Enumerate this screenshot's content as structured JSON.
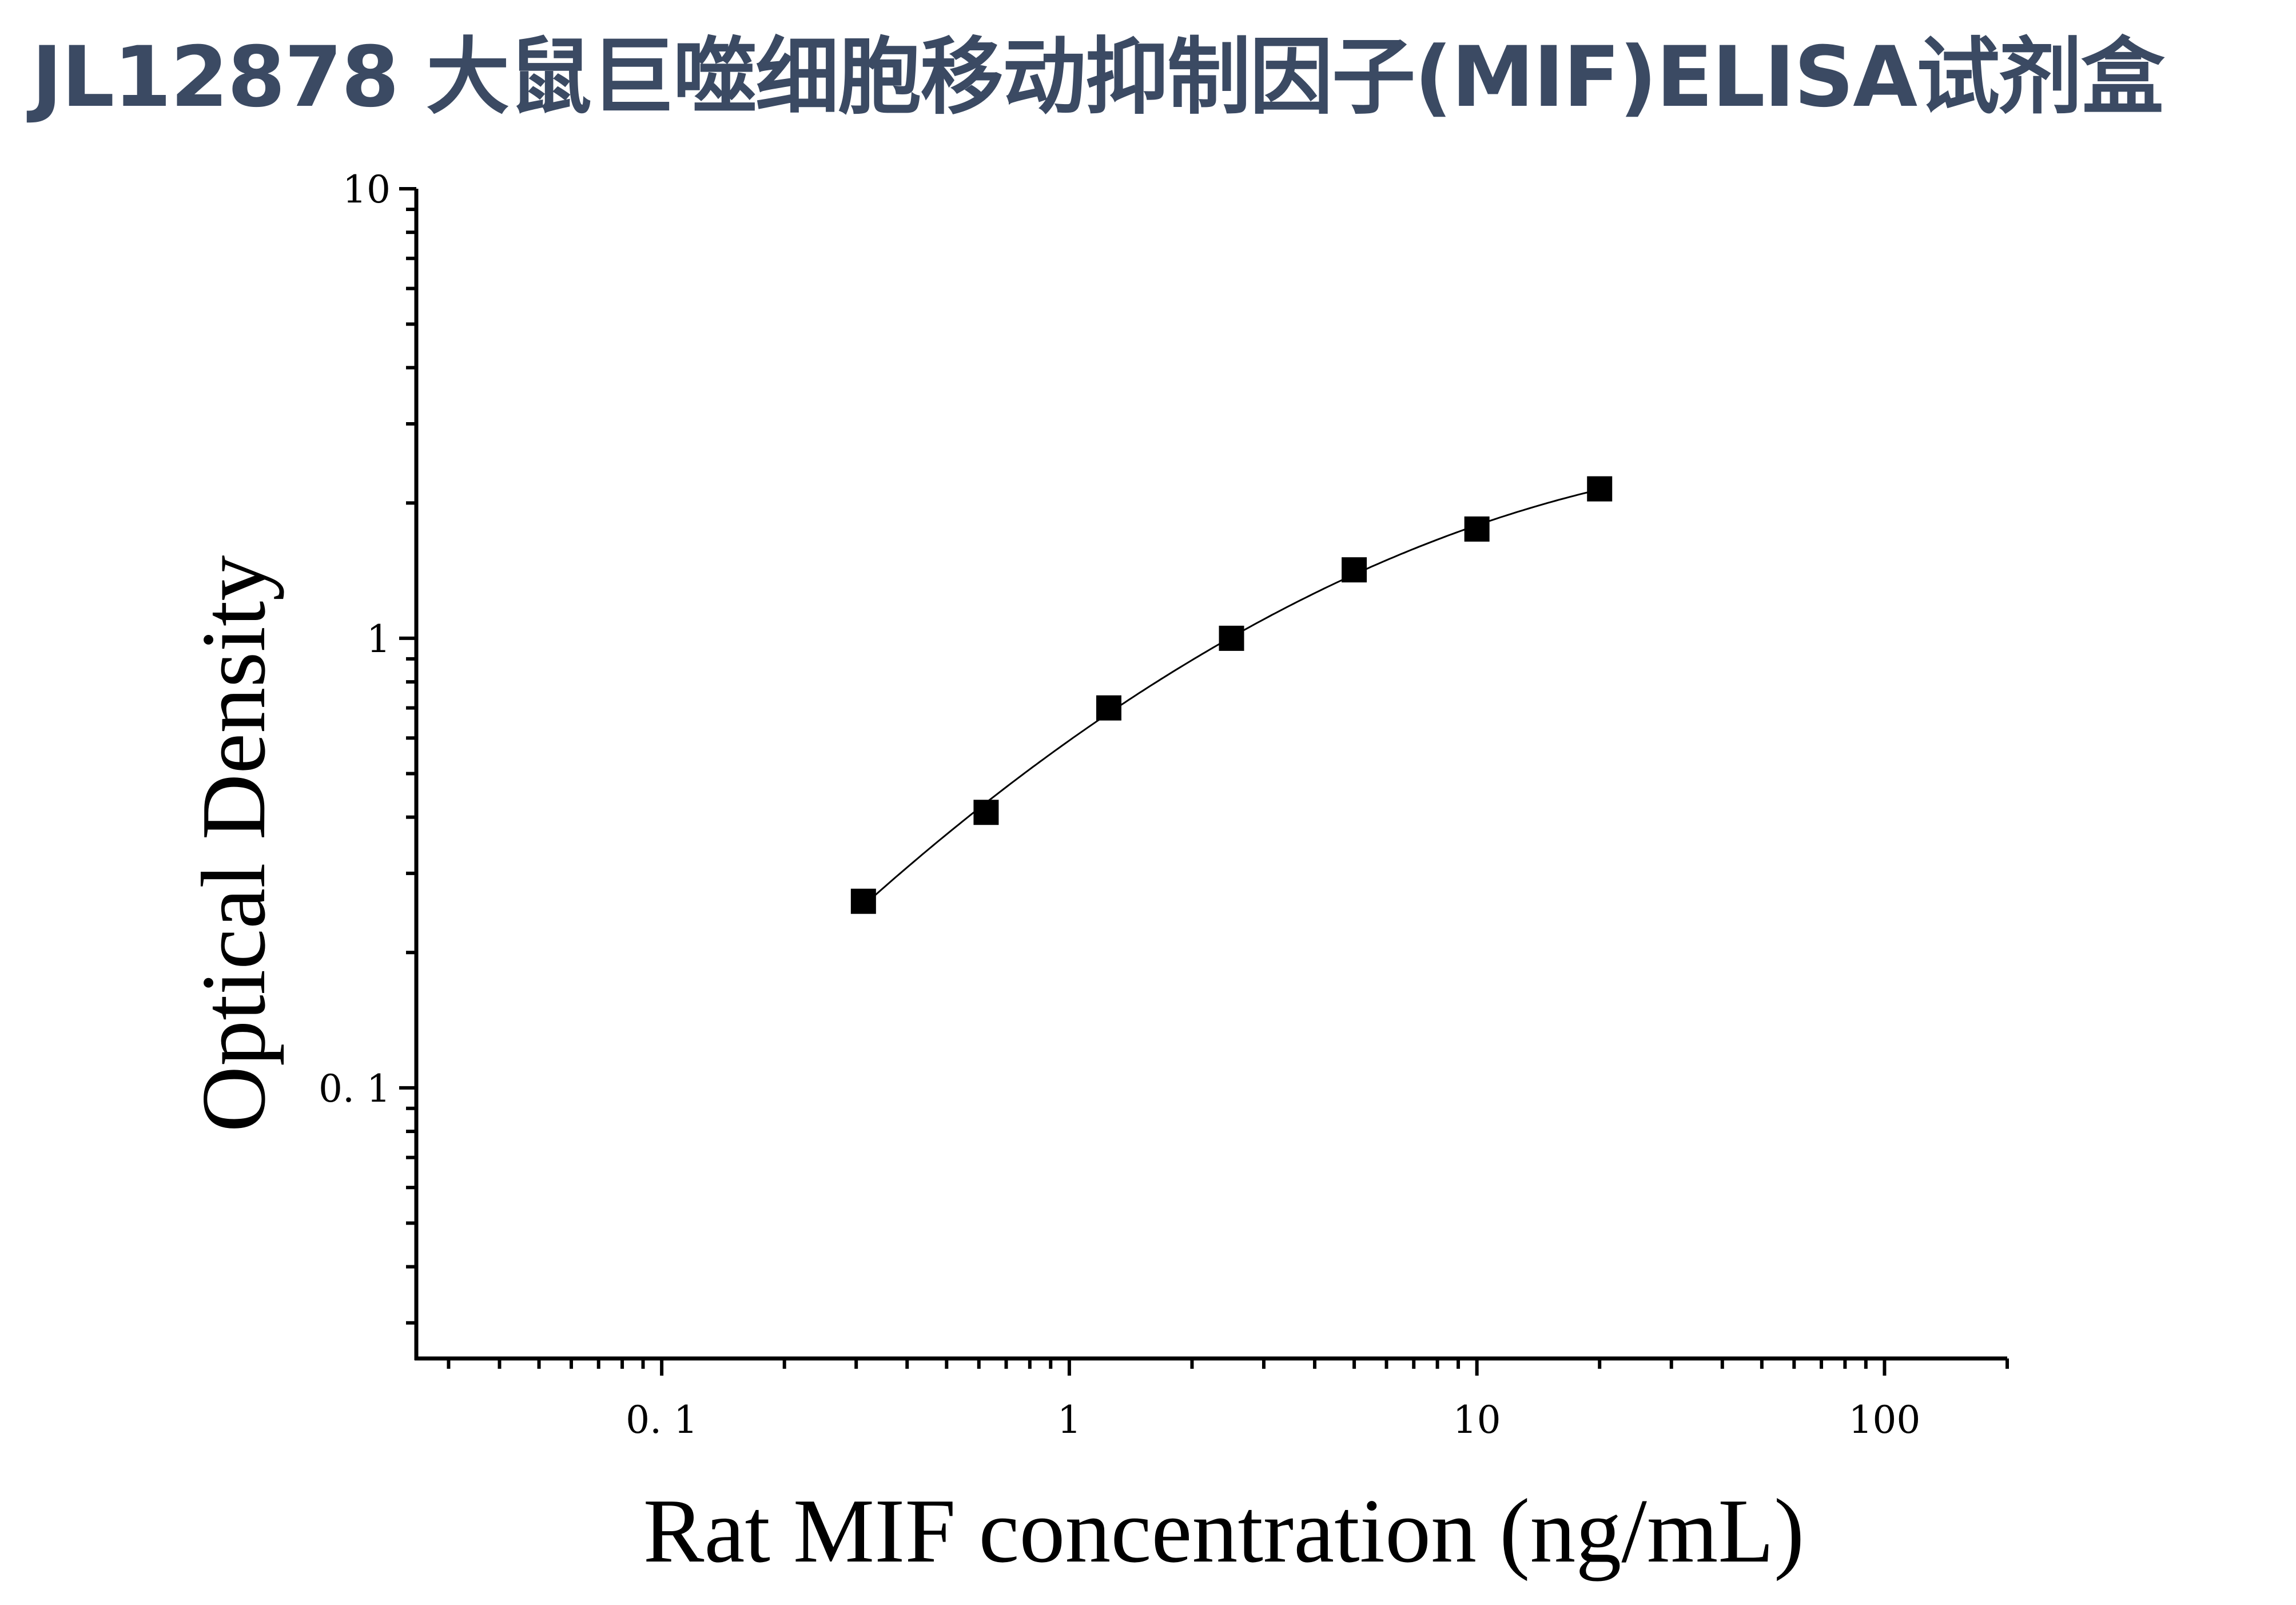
{
  "title": "JL12878 大鼠巨噬细胞移动抑制因子(MIF)ELISA试剂盒",
  "chart_data": {
    "type": "scatter",
    "xlabel": "Rat MIF concentration (ng/mL)",
    "ylabel": "Optical Density",
    "xscale": "log",
    "yscale": "log",
    "xlim": [
      0.025,
      200
    ],
    "ylim": [
      0.025,
      10
    ],
    "x_ticks": [
      0.1,
      1,
      10,
      100
    ],
    "x_tick_labels": [
      "0. 1",
      "1",
      "10",
      "100"
    ],
    "y_ticks": [
      0.1,
      1,
      10
    ],
    "y_tick_labels": [
      "0. 1",
      "1",
      "10"
    ],
    "grid": false,
    "legend": "none",
    "series": [
      {
        "marker": "square",
        "color": "#000000",
        "x": [
          0.3125,
          0.625,
          1.25,
          2.5,
          5,
          10,
          20
        ],
        "y": [
          0.26,
          0.41,
          0.7,
          1.0,
          1.42,
          1.75,
          2.15
        ],
        "fit_line": true
      }
    ]
  }
}
